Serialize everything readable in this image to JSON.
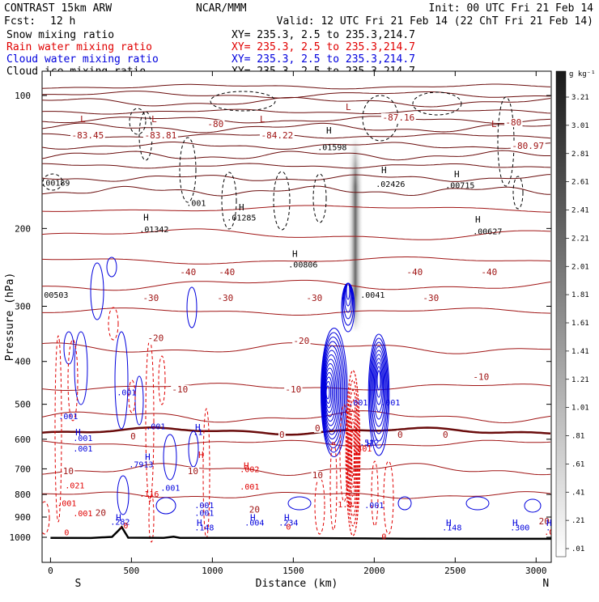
{
  "header": {
    "model": "CONTRAST 15km ARW",
    "center": "NCAR/MMM",
    "init": "Init: 00 UTC Fri 21 Feb 14",
    "fcst_label": "Fcst:",
    "fcst_value": "12 h",
    "valid": "Valid: 12 UTC Fri 21 Feb 14 (22 ChT Fri 21 Feb 14)"
  },
  "legend": {
    "xy_text": "XY= 235.3,  2.5 to 235.3,214.7",
    "fields": [
      {
        "name": "Snow mixing ratio",
        "color": "#000000"
      },
      {
        "name": "Rain water mixing ratio",
        "color": "#e00000"
      },
      {
        "name": "Cloud water mixing ratio",
        "color": "#0000dd"
      },
      {
        "name": "Cloud ice mixing ratio",
        "color": "#000000"
      }
    ]
  },
  "colorbar": {
    "unit": "g kg⁻¹",
    "labels": [
      "3.21",
      "3.01",
      "2.81",
      "2.61",
      "2.41",
      "2.21",
      "2.01",
      "1.81",
      "1.61",
      "1.41",
      "1.21",
      "1.01",
      ".81",
      ".61",
      ".41",
      ".21",
      ".01"
    ]
  },
  "colors": {
    "theta": "#6a0c0c",
    "zero_isotherm": "#6a0c0c",
    "temperature": "#a01515",
    "rain": "#e00000",
    "cloud_water": "#0000dd",
    "ice": "#000000",
    "terrain": "#000000"
  },
  "chart_data": {
    "type": "cross-section",
    "xlabel": "Distance (km)",
    "ylabel": "Pressure (hPa)",
    "xlim": [
      0,
      3200
    ],
    "ylim": [
      1050,
      70
    ],
    "y_scale": "log",
    "xticks": [
      0,
      500,
      1000,
      1500,
      2000,
      2500,
      3000
    ],
    "yticks": [
      100,
      200,
      300,
      400,
      500,
      600,
      700,
      800,
      900,
      1000
    ],
    "end_labels": {
      "left": "S",
      "right": "N"
    },
    "terrain": [
      [
        0,
        1003
      ],
      [
        250,
        1004
      ],
      [
        380,
        998
      ],
      [
        420,
        965
      ],
      [
        440,
        948
      ],
      [
        460,
        975
      ],
      [
        480,
        1002
      ],
      [
        700,
        1003
      ],
      [
        760,
        997
      ],
      [
        800,
        1003
      ],
      [
        1400,
        1004
      ],
      [
        1800,
        1005
      ],
      [
        1950,
        1006
      ],
      [
        2200,
        1007
      ],
      [
        3200,
        1008
      ]
    ],
    "temperature_labels": [
      {
        "x": 230,
        "p": 125,
        "text": "-83.45"
      },
      {
        "x": 680,
        "p": 125,
        "text": "-83.81"
      },
      {
        "x": 1020,
        "p": 118,
        "text": "-80"
      },
      {
        "x": 1400,
        "p": 125,
        "text": "-84.22"
      },
      {
        "x": 2150,
        "p": 114,
        "text": "-87.16"
      },
      {
        "x": 2860,
        "p": 117,
        "text": "-80"
      },
      {
        "x": 2950,
        "p": 132,
        "text": "-80.97"
      },
      {
        "x": 850,
        "p": 255,
        "text": "-40"
      },
      {
        "x": 1090,
        "p": 255,
        "text": "-40"
      },
      {
        "x": 2250,
        "p": 255,
        "text": "-40"
      },
      {
        "x": 2710,
        "p": 255,
        "text": "-40"
      },
      {
        "x": 620,
        "p": 292,
        "text": "-30"
      },
      {
        "x": 1080,
        "p": 292,
        "text": "-30"
      },
      {
        "x": 1630,
        "p": 292,
        "text": "-30"
      },
      {
        "x": 2350,
        "p": 292,
        "text": "-30"
      },
      {
        "x": 650,
        "p": 360,
        "text": "-20"
      },
      {
        "x": 1550,
        "p": 365,
        "text": "-20"
      },
      {
        "x": 800,
        "p": 470,
        "text": "-10"
      },
      {
        "x": 1500,
        "p": 470,
        "text": "-10"
      },
      {
        "x": 2660,
        "p": 440,
        "text": "-10"
      },
      {
        "x": 510,
        "p": 600,
        "text": "0"
      },
      {
        "x": 1430,
        "p": 595,
        "text": "0"
      },
      {
        "x": 1650,
        "p": 575,
        "text": "0"
      },
      {
        "x": 2160,
        "p": 595,
        "text": "0"
      },
      {
        "x": 2440,
        "p": 595,
        "text": "0"
      },
      {
        "x": 110,
        "p": 720,
        "text": "10"
      },
      {
        "x": 880,
        "p": 720,
        "text": "10"
      },
      {
        "x": 1650,
        "p": 735,
        "text": "10"
      },
      {
        "x": 310,
        "p": 895,
        "text": "20"
      },
      {
        "x": 1260,
        "p": 880,
        "text": "20"
      },
      {
        "x": 3050,
        "p": 935,
        "text": "20"
      }
    ],
    "extrema": [
      {
        "x": 200,
        "p": 115,
        "text": "L",
        "color": "#a01515"
      },
      {
        "x": 640,
        "p": 115,
        "text": "L",
        "color": "#a01515"
      },
      {
        "x": 1310,
        "p": 115,
        "text": "L",
        "color": "#a01515"
      },
      {
        "x": 1840,
        "p": 108,
        "text": "L",
        "color": "#a01515"
      },
      {
        "x": 2740,
        "p": 118,
        "text": "L",
        "color": "#a01515"
      },
      {
        "x": 1720,
        "p": 122,
        "text": "H",
        "color": "#000000"
      },
      {
        "x": 2060,
        "p": 150,
        "text": "H",
        "color": "#000000"
      },
      {
        "x": 2510,
        "p": 153,
        "text": "H",
        "color": "#000000"
      },
      {
        "x": 1180,
        "p": 182,
        "text": "H",
        "color": "#000000"
      },
      {
        "x": 590,
        "p": 192,
        "text": "H",
        "color": "#000000"
      },
      {
        "x": 2640,
        "p": 194,
        "text": "H",
        "color": "#000000"
      },
      {
        "x": 1510,
        "p": 232,
        "text": "H",
        "color": "#000000"
      },
      {
        "x": 930,
        "p": 662,
        "text": "H",
        "color": "#e00000"
      },
      {
        "x": 1210,
        "p": 700,
        "text": "H",
        "color": "#e00000"
      },
      {
        "x": 170,
        "p": 588,
        "text": "H",
        "color": "#0000dd"
      },
      {
        "x": 600,
        "p": 668,
        "text": "H",
        "color": "#0000dd"
      },
      {
        "x": 910,
        "p": 573,
        "text": "H",
        "color": "#0000dd"
      },
      {
        "x": 1970,
        "p": 625,
        "text": "H",
        "color": "#0000dd"
      },
      {
        "x": 420,
        "p": 917,
        "text": "H",
        "color": "#0000dd"
      },
      {
        "x": 920,
        "p": 942,
        "text": "H",
        "color": "#0000dd"
      },
      {
        "x": 1250,
        "p": 917,
        "text": "H",
        "color": "#0000dd"
      },
      {
        "x": 1460,
        "p": 917,
        "text": "H",
        "color": "#0000dd"
      },
      {
        "x": 2460,
        "p": 942,
        "text": "H",
        "color": "#0000dd"
      },
      {
        "x": 2870,
        "p": 942,
        "text": "H",
        "color": "#0000dd"
      },
      {
        "x": 3080,
        "p": 942,
        "text": "H",
        "color": "#0000dd"
      }
    ],
    "values": [
      {
        "x": 30,
        "p": 160,
        "text": ".00189",
        "color": "#000000"
      },
      {
        "x": 900,
        "p": 178,
        "text": ".001",
        "color": "#000000"
      },
      {
        "x": 1180,
        "p": 192,
        "text": ".01285",
        "color": "#000000"
      },
      {
        "x": 640,
        "p": 204,
        "text": ".01342",
        "color": "#000000"
      },
      {
        "x": 1740,
        "p": 133,
        "text": ".01598",
        "color": "#000000"
      },
      {
        "x": 2100,
        "p": 161,
        "text": ".02426",
        "color": "#000000"
      },
      {
        "x": 2530,
        "p": 162,
        "text": ".00715",
        "color": "#000000"
      },
      {
        "x": 2700,
        "p": 206,
        "text": ".00627",
        "color": "#000000"
      },
      {
        "x": 1560,
        "p": 245,
        "text": ".00806",
        "color": "#000000"
      },
      {
        "x": 20,
        "p": 287,
        "text": ".00503",
        "color": "#000000"
      },
      {
        "x": 1990,
        "p": 287,
        "text": ".0041",
        "color": "#000000"
      },
      {
        "x": 470,
        "p": 477,
        "text": ".001",
        "color": "#0000dd"
      },
      {
        "x": 110,
        "p": 540,
        "text": ".001",
        "color": "#0000dd"
      },
      {
        "x": 650,
        "p": 570,
        "text": ".001",
        "color": "#0000dd"
      },
      {
        "x": 910,
        "p": 586,
        "text": ".1",
        "color": "#0000dd"
      },
      {
        "x": 200,
        "p": 605,
        "text": ".001",
        "color": "#0000dd"
      },
      {
        "x": 200,
        "p": 640,
        "text": ".001",
        "color": "#0000dd"
      },
      {
        "x": 1900,
        "p": 503,
        "text": ".001",
        "color": "#0000dd"
      },
      {
        "x": 2100,
        "p": 503,
        "text": ".001",
        "color": "#0000dd"
      },
      {
        "x": 1970,
        "p": 620,
        "text": ".522",
        "color": "#0000dd"
      },
      {
        "x": 560,
        "p": 695,
        "text": ".7913",
        "color": "#0000dd"
      },
      {
        "x": 740,
        "p": 785,
        "text": ".001",
        "color": "#0000dd"
      },
      {
        "x": 950,
        "p": 860,
        "text": ".001",
        "color": "#0000dd"
      },
      {
        "x": 950,
        "p": 895,
        "text": ".001",
        "color": "#0000dd"
      },
      {
        "x": 2000,
        "p": 860,
        "text": ".001",
        "color": "#0000dd"
      },
      {
        "x": 430,
        "p": 937,
        "text": ".282",
        "color": "#0000dd"
      },
      {
        "x": 950,
        "p": 965,
        "text": ".148",
        "color": "#0000dd"
      },
      {
        "x": 1260,
        "p": 940,
        "text": ".004",
        "color": "#0000dd"
      },
      {
        "x": 1470,
        "p": 940,
        "text": ".234",
        "color": "#0000dd"
      },
      {
        "x": 2480,
        "p": 965,
        "text": ".148",
        "color": "#0000dd"
      },
      {
        "x": 2900,
        "p": 965,
        "text": ".300",
        "color": "#0000dd"
      },
      {
        "x": 3120,
        "p": 965,
        "text": ".812",
        "color": "#0000dd"
      },
      {
        "x": 150,
        "p": 775,
        "text": ".021",
        "color": "#e00000"
      },
      {
        "x": 1230,
        "p": 712,
        "text": ".002",
        "color": "#e00000"
      },
      {
        "x": 1230,
        "p": 780,
        "text": ".001",
        "color": "#e00000"
      },
      {
        "x": 100,
        "p": 850,
        "text": ".001",
        "color": "#e00000"
      },
      {
        "x": 200,
        "p": 897,
        "text": ".001",
        "color": "#e00000"
      },
      {
        "x": 610,
        "p": 810,
        "text": ".116",
        "color": "#e00000"
      },
      {
        "x": 1940,
        "p": 640,
        "text": "401",
        "color": "#e00000"
      },
      {
        "x": 1820,
        "p": 855,
        "text": "1.8",
        "color": "#e00000"
      },
      {
        "x": 450,
        "p": 955,
        "text": ".0",
        "color": "#e00000"
      },
      {
        "x": 1470,
        "p": 960,
        "text": "0",
        "color": "#e00000"
      },
      {
        "x": 3110,
        "p": 988,
        "text": ".003",
        "color": "#e00000"
      },
      {
        "x": 100,
        "p": 990,
        "text": "0",
        "color": "#e00000"
      },
      {
        "x": 2060,
        "p": 1010,
        "text": "0",
        "color": "#e00000"
      }
    ]
  }
}
